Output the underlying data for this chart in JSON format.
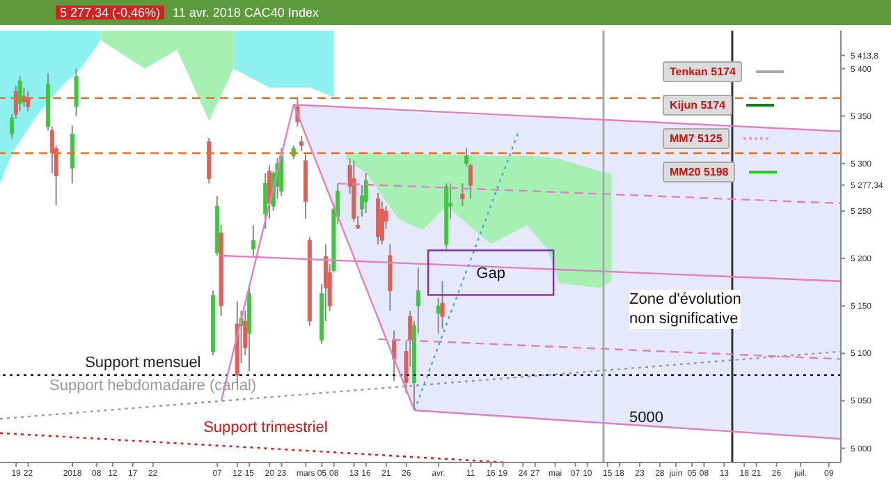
{
  "chart_data": {
    "type": "candlestick",
    "title": "11 avr. 2018 CAC40 Index",
    "subtitle": "5 277,34 (-0,46%)",
    "x": [
      "2017-12-18",
      "2017-12-19",
      "2017-12-20",
      "2017-12-21",
      "2017-12-22",
      "2017-12-27",
      "2017-12-28",
      "2017-12-29",
      "2018-01-02",
      "2018-01-03",
      "2018-02-05",
      "2018-02-06",
      "2018-02-07",
      "2018-02-08",
      "2018-02-12",
      "2018-02-13",
      "2018-02-14",
      "2018-02-15",
      "2018-02-16",
      "2018-02-19",
      "2018-02-20",
      "2018-02-21",
      "2018-02-22",
      "2018-02-23",
      "2018-02-26",
      "2018-02-27",
      "2018-02-28",
      "2018-03-01",
      "2018-03-02",
      "2018-03-05",
      "2018-03-06",
      "2018-03-07",
      "2018-03-08",
      "2018-03-09",
      "2018-03-12",
      "2018-03-13",
      "2018-03-14",
      "2018-03-15",
      "2018-03-16",
      "2018-03-19",
      "2018-03-20",
      "2018-03-21",
      "2018-03-22",
      "2018-03-23",
      "2018-03-26",
      "2018-03-27",
      "2018-03-28",
      "2018-03-29",
      "2018-04-03",
      "2018-04-04",
      "2018-04-05",
      "2018-04-06",
      "2018-04-09",
      "2018-04-10",
      "2018-04-11"
    ],
    "ohlc": [
      [
        5331,
        5352,
        5326,
        5348
      ],
      [
        5376,
        5382,
        5347,
        5352
      ],
      [
        5363,
        5392,
        5355,
        5387
      ],
      [
        5371,
        5380,
        5360,
        5365
      ],
      [
        5368,
        5376,
        5355,
        5360
      ],
      [
        5339,
        5395,
        5335,
        5384
      ],
      [
        5335,
        5339,
        5290,
        5311
      ],
      [
        5316,
        5319,
        5256,
        5287
      ],
      [
        5295,
        5340,
        5279,
        5331
      ],
      [
        5360,
        5400,
        5350,
        5392
      ],
      [
        5323,
        5327,
        5279,
        5284
      ],
      [
        5102,
        5166,
        5098,
        5161
      ],
      [
        5206,
        5266,
        5203,
        5255
      ],
      [
        5227,
        5235,
        5139,
        5150
      ],
      [
        5131,
        5155,
        5069,
        5077
      ],
      [
        5129,
        5145,
        5090,
        5137
      ],
      [
        5134,
        5145,
        5098,
        5106
      ],
      [
        5121,
        5171,
        5081,
        5163
      ],
      [
        5210,
        5235,
        5203,
        5219
      ],
      [
        5247,
        5290,
        5231,
        5279
      ],
      [
        5292,
        5298,
        5242,
        5258
      ],
      [
        5255,
        5292,
        5250,
        5290
      ],
      [
        5276,
        5306,
        5263,
        5300
      ],
      [
        5271,
        5316,
        5266,
        5308
      ],
      [
        5308,
        5319,
        5305,
        5316
      ],
      [
        5360,
        5368,
        5339,
        5344
      ],
      [
        5323,
        5329,
        5313,
        5319
      ],
      [
        5303,
        5311,
        5242,
        5260
      ],
      [
        5219,
        5223,
        5129,
        5134
      ],
      [
        5114,
        5173,
        5110,
        5163
      ],
      [
        5202,
        5215,
        5134,
        5169
      ],
      [
        5185,
        5194,
        5145,
        5150
      ],
      [
        5187,
        5258,
        5185,
        5252
      ],
      [
        5244,
        5279,
        5236,
        5271
      ],
      [
        5298,
        5305,
        5268,
        5276
      ],
      [
        5284,
        5303,
        5239,
        5242
      ],
      [
        5235,
        5245,
        5231,
        5232
      ],
      [
        5252,
        5277,
        5244,
        5266
      ],
      [
        5260,
        5290,
        5248,
        5282
      ],
      [
        5263,
        5269,
        5215,
        5223
      ],
      [
        5252,
        5260,
        5215,
        5219
      ],
      [
        5250,
        5255,
        5231,
        5239
      ],
      [
        5203,
        5215,
        5145,
        5166
      ],
      [
        5113,
        5124,
        5071,
        5094
      ],
      [
        5102,
        5113,
        5058,
        5069
      ],
      [
        5139,
        5145,
        5086,
        5113
      ],
      [
        5069,
        5134,
        5042,
        5129
      ],
      [
        5150,
        5190,
        5121,
        5166
      ],
      [
        5142,
        5158,
        5121,
        5150
      ],
      [
        5153,
        5176,
        5126,
        5139
      ],
      [
        5215,
        5279,
        5210,
        5276
      ],
      [
        5255,
        5279,
        5242,
        5258
      ],
      [
        5268,
        5279,
        5255,
        5263
      ],
      [
        5300,
        5316,
        5297,
        5308
      ],
      [
        5298,
        5300,
        5263,
        5277
      ]
    ],
    "colors": [
      "#3cc83c",
      "#e06058",
      "#3cc83c",
      "#e06058",
      "#e06058",
      "#3cc83c",
      "#e06058",
      "#e06058",
      "#3cc83c",
      "#3cc83c",
      "#e06058",
      "#3cc83c",
      "#3cc83c",
      "#e06058",
      "#e06058",
      "#3cc83c",
      "#e06058",
      "#3cc83c",
      "#3cc83c",
      "#3cc83c",
      "#e06058",
      "#3cc83c",
      "#3cc83c",
      "#3cc83c",
      "#3cc83c",
      "#e06058",
      "#e06058",
      "#e06058",
      "#e06058",
      "#3cc83c",
      "#e06058",
      "#e06058",
      "#3cc83c",
      "#3cc83c",
      "#e06058",
      "#e06058",
      "#e06058",
      "#3cc83c",
      "#3cc83c",
      "#e06058",
      "#e06058",
      "#e06058",
      "#e06058",
      "#e06058",
      "#e06058",
      "#e06058",
      "#3cc83c",
      "#3cc83c",
      "#3cc83c",
      "#e06058",
      "#3cc83c",
      "#3cc83c",
      "#e06058",
      "#3cc83c",
      "#e06058"
    ],
    "series": [
      {
        "type": "area",
        "color": "#e6e9fb",
        "x": [
          "2018-02-26",
          "2018-03-28",
          "2018-07-12"
        ],
        "values": [
          null,
          null,
          null
        ],
        "lower": [
          5362,
          5040,
          5010
        ],
        "upper": [
          5362,
          5354,
          5334
        ]
      },
      {
        "type": "area",
        "color": "#8ff0f0",
        "x": [
          "2017-12-15",
          "2017-12-18",
          "2017-12-24",
          "2017-12-30",
          "2018-01-04",
          "2018-01-09"
        ],
        "values": [
          null,
          null,
          null,
          null,
          null,
          null
        ],
        "lower": [
          5279,
          5311,
          5350,
          5380,
          5400,
          5430
        ],
        "upper": [
          5440,
          5440,
          5440,
          5440,
          5440,
          5440
        ]
      },
      {
        "type": "area",
        "color": "#a6f0b4",
        "x": [
          "2018-01-09",
          "2018-01-20",
          "2018-01-28",
          "2018-02-05",
          "2018-02-11"
        ],
        "values": [
          null,
          null,
          null,
          null,
          null
        ],
        "lower": [
          5430,
          5400,
          5420,
          5345,
          5400
        ],
        "upper": [
          5440,
          5440,
          5440,
          5440,
          5440
        ]
      },
      {
        "type": "area",
        "color": "#8ff0f0",
        "x": [
          "2018-02-11",
          "2018-02-20",
          "2018-03-02",
          "2018-03-08"
        ],
        "values": [
          null,
          null,
          null,
          null
        ],
        "lower": [
          5400,
          5380,
          5380,
          5370
        ],
        "upper": [
          5440,
          5440,
          5440,
          5440
        ]
      },
      {
        "type": "area",
        "color": "#a6f0b4",
        "x": [
          "2018-03-11",
          "2018-03-16",
          "2018-03-24",
          "2018-03-30",
          "2018-04-05",
          "2018-04-16",
          "2018-04-25",
          "2018-04-30",
          "2018-05-03",
          "2018-05-13",
          "2018-05-16"
        ],
        "values": [
          null,
          null,
          null,
          null,
          null,
          null,
          null,
          null,
          null,
          null,
          null
        ],
        "lower": [
          5305,
          5290,
          5242,
          5230,
          5255,
          5215,
          5235,
          5210,
          5174,
          5169,
          5176
        ],
        "upper": [
          5311,
          5311,
          5311,
          5310,
          5310,
          5308,
          5308,
          5307,
          5305,
          5292,
          5289
        ]
      },
      {
        "type": "line",
        "color": "#e27fc4",
        "line_style": "solid",
        "x": [
          "2018-02-08",
          "2018-02-26",
          "2018-03-28"
        ],
        "values": [
          5050,
          5362,
          5040
        ]
      },
      {
        "type": "line",
        "color": "#e27fc4",
        "line_style": "solid",
        "x": [
          "2018-02-26",
          "2018-07-12"
        ],
        "values": [
          5362,
          5334
        ]
      },
      {
        "type": "line",
        "color": "#e27fc4",
        "line_style": "solid",
        "x": [
          "2018-02-08",
          "2018-07-12"
        ],
        "values": [
          5203,
          5176
        ]
      },
      {
        "type": "line",
        "color": "#e27fc4",
        "line_style": "dashed",
        "x": [
          "2018-03-09",
          "2018-07-12"
        ],
        "values": [
          5279,
          5258
        ]
      },
      {
        "type": "line",
        "color": "#e27fc4",
        "line_style": "dashed",
        "x": [
          "2018-03-19",
          "2018-07-12"
        ],
        "values": [
          5115,
          5094
        ]
      },
      {
        "type": "line",
        "color": "#e27fc4",
        "line_style": "solid",
        "x": [
          "2018-03-28",
          "2018-07-12"
        ],
        "values": [
          5040,
          5010
        ]
      },
      {
        "type": "line",
        "color": "#3fa9e0",
        "line_style": "dotted",
        "x": [
          "2018-03-28",
          "2018-04-23"
        ],
        "values": [
          5040,
          5335
        ]
      },
      {
        "type": "line",
        "name": "Support hebdomadaire (canal)",
        "color": "#999999",
        "line_style": "dotted",
        "x": [
          "2017-12-15",
          "2018-01-22",
          "2018-07-12"
        ],
        "values": [
          5031,
          5044,
          5102
        ]
      },
      {
        "type": "line",
        "name": "Support trimestriel",
        "color": "#dd1111",
        "line_style": "dotted",
        "x": [
          "2017-12-15",
          "2018-02-19",
          "2018-04-20"
        ],
        "values": [
          5016,
          5000,
          4985
        ]
      }
    ],
    "ref_lines": [
      {
        "axis": "y",
        "value": 5369,
        "color": "#f07020",
        "line_style": "dashed"
      },
      {
        "axis": "y",
        "value": 5311,
        "color": "#f07020",
        "line_style": "dashed"
      },
      {
        "axis": "y",
        "value": 5077,
        "color": "#222222",
        "line_style": "dotted",
        "label": "Support mensuel"
      },
      {
        "axis": "x",
        "value": "2018-05-14",
        "color": "#aaaaaa",
        "line_style": "solid"
      },
      {
        "axis": "x",
        "value": "2018-06-15",
        "color": "#333333",
        "line_style": "solid"
      }
    ],
    "annotations": [
      {
        "text": "Gap",
        "x": "2018-04-16",
        "y": 5185
      },
      "Zone d'évolution\nnon significative",
      "5000",
      "Tenkan 5174",
      "Kijun 5174",
      "MM7 5125",
      "MM20 5198"
    ],
    "xlim": [
      "2017-12-15",
      "2018-07-12"
    ],
    "xticks": [
      {
        "value": "2017-12-19",
        "label": "19"
      },
      {
        "value": "2017-12-22",
        "label": "22"
      },
      {
        "value": "2018-01-02",
        "label": "2018"
      },
      {
        "value": "2018-01-08",
        "label": "08"
      },
      {
        "value": "2018-01-12",
        "label": "12"
      },
      {
        "value": "2018-01-17",
        "label": "17"
      },
      {
        "value": "2018-01-22",
        "label": "22"
      },
      {
        "value": "2018-02-07",
        "label": "07"
      },
      {
        "value": "2018-02-12",
        "label": "12"
      },
      {
        "value": "2018-02-15",
        "label": "15"
      },
      {
        "value": "2018-02-20",
        "label": "20"
      },
      {
        "value": "2018-02-23",
        "label": "23"
      },
      {
        "value": "2018-03-01",
        "label": "mars"
      },
      {
        "value": "2018-03-05",
        "label": "05"
      },
      {
        "value": "2018-03-08",
        "label": "08"
      },
      {
        "value": "2018-03-13",
        "label": "13"
      },
      {
        "value": "2018-03-16",
        "label": "16"
      },
      {
        "value": "2018-03-21",
        "label": "21"
      },
      {
        "value": "2018-03-26",
        "label": "26"
      },
      {
        "value": "2018-04-03",
        "label": "avr."
      },
      {
        "value": "2018-04-11",
        "label": "11"
      },
      {
        "value": "2018-04-16",
        "label": "16"
      },
      {
        "value": "2018-04-19",
        "label": "19"
      },
      {
        "value": "2018-04-24",
        "label": "24"
      },
      {
        "value": "2018-04-27",
        "label": "27"
      },
      {
        "value": "2018-05-02",
        "label": "mai"
      },
      {
        "value": "2018-05-07",
        "label": "07"
      },
      {
        "value": "2018-05-10",
        "label": "10"
      },
      {
        "value": "2018-05-15",
        "label": "15"
      },
      {
        "value": "2018-05-18",
        "label": "18"
      },
      {
        "value": "2018-05-23",
        "label": "23"
      },
      {
        "value": "2018-05-28",
        "label": "28"
      },
      {
        "value": "2018-06-01",
        "label": "juin"
      },
      {
        "value": "2018-06-05",
        "label": "05"
      },
      {
        "value": "2018-06-08",
        "label": "08"
      },
      {
        "value": "2018-06-13",
        "label": "13"
      },
      {
        "value": "2018-06-18",
        "label": "18"
      },
      {
        "value": "2018-06-21",
        "label": "21"
      },
      {
        "value": "2018-06-26",
        "label": "26"
      },
      {
        "value": "2018-07-02",
        "label": "juil."
      },
      {
        "value": "2018-07-09",
        "label": "09"
      }
    ],
    "ylim": [
      4985,
      5440
    ],
    "yticks": [
      {
        "value": 5000,
        "label": "5 000"
      },
      {
        "value": 5050,
        "label": "5 050"
      },
      {
        "value": 5100,
        "label": "5 100"
      },
      {
        "value": 5150,
        "label": "5 150"
      },
      {
        "value": 5200,
        "label": "5 200"
      },
      {
        "value": 5250,
        "label": "5 250"
      },
      {
        "value": 5277.34,
        "label": "5 277,34"
      },
      {
        "value": 5300,
        "label": "5 300"
      },
      {
        "value": 5350,
        "label": "5 350"
      },
      {
        "value": 5400,
        "label": "5 400"
      },
      {
        "value": 5413.8,
        "label": "5 413,8"
      }
    ]
  }
}
